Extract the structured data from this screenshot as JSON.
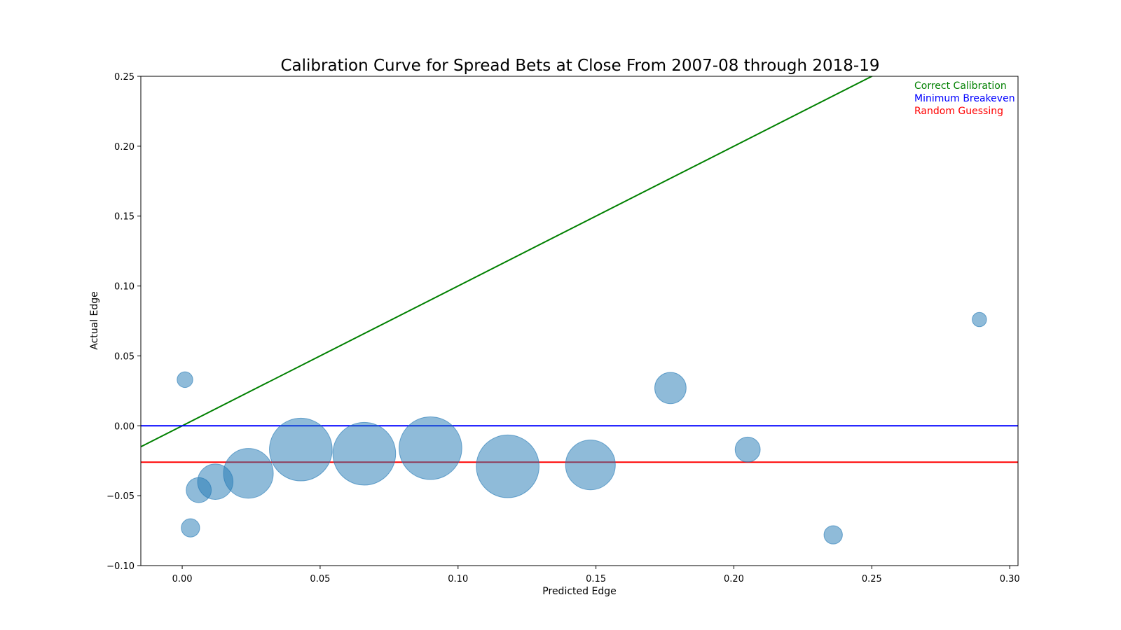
{
  "chart_data": {
    "type": "scatter",
    "title": "Calibration Curve for Spread Bets at Close From 2007-08 through 2018-19",
    "xlabel": "Predicted Edge",
    "ylabel": "Actual Edge",
    "xlim": [
      -0.015,
      0.303
    ],
    "ylim": [
      -0.1,
      0.25
    ],
    "x_ticks": [
      0.0,
      0.05,
      0.1,
      0.15,
      0.2,
      0.25,
      0.3
    ],
    "x_tick_labels": [
      "0.00",
      "0.05",
      "0.10",
      "0.15",
      "0.20",
      "0.25",
      "0.30"
    ],
    "y_ticks": [
      -0.1,
      -0.05,
      0.0,
      0.05,
      0.1,
      0.15,
      0.2,
      0.25
    ],
    "y_tick_labels": [
      "−0.10",
      "−0.05",
      "0.00",
      "0.05",
      "0.10",
      "0.15",
      "0.20",
      "0.25"
    ],
    "grid": false,
    "legend_position": "top-right",
    "bubble_color": "#1f77b4",
    "bubble_opacity": 0.5,
    "points": [
      {
        "x": 0.001,
        "y": 0.033,
        "size_rel": 0.35
      },
      {
        "x": 0.003,
        "y": -0.073,
        "size_rel": 0.41
      },
      {
        "x": 0.006,
        "y": -0.046,
        "size_rel": 0.56
      },
      {
        "x": 0.012,
        "y": -0.04,
        "size_rel": 0.79
      },
      {
        "x": 0.024,
        "y": -0.034,
        "size_rel": 1.11
      },
      {
        "x": 0.043,
        "y": -0.017,
        "size_rel": 1.4
      },
      {
        "x": 0.066,
        "y": -0.02,
        "size_rel": 1.4
      },
      {
        "x": 0.09,
        "y": -0.016,
        "size_rel": 1.4
      },
      {
        "x": 0.118,
        "y": -0.029,
        "size_rel": 1.4
      },
      {
        "x": 0.148,
        "y": -0.028,
        "size_rel": 1.11
      },
      {
        "x": 0.177,
        "y": 0.027,
        "size_rel": 0.7
      },
      {
        "x": 0.205,
        "y": -0.017,
        "size_rel": 0.56
      },
      {
        "x": 0.236,
        "y": -0.078,
        "size_rel": 0.41
      },
      {
        "x": 0.289,
        "y": 0.076,
        "size_rel": 0.32
      }
    ],
    "lines": [
      {
        "name": "Correct Calibration",
        "kind": "diagonal",
        "color": "#008000"
      },
      {
        "name": "Minimum Breakeven",
        "kind": "horizontal",
        "y": 0.0,
        "color": "#0000ff"
      },
      {
        "name": "Random Guessing",
        "kind": "horizontal",
        "y": -0.026,
        "color": "#ff0000"
      }
    ]
  }
}
